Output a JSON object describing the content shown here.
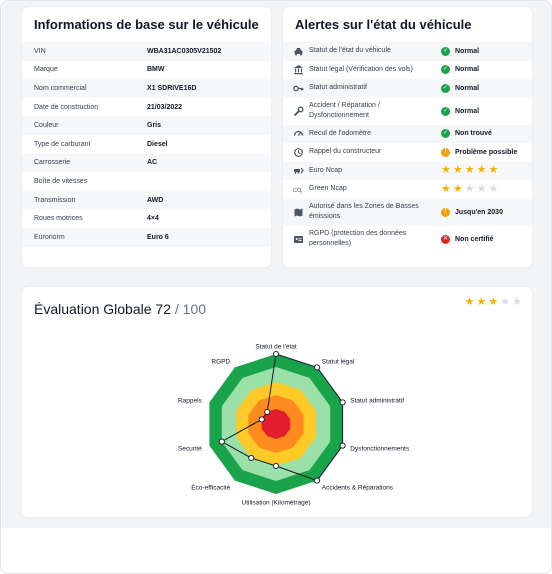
{
  "colors": {
    "normal": "#16a34a",
    "warning": "#f59e0b",
    "danger": "#dc2626",
    "star_on": "#f5b301",
    "star_off": "#d9dce1"
  },
  "vehicle_info": {
    "title": "Informations de base sur le véhicule",
    "rows": [
      {
        "label": "VIN",
        "value": "WBA31AC0305V21502"
      },
      {
        "label": "Marque",
        "value": "BMW"
      },
      {
        "label": "Nom commercial",
        "value": "X1 SDRIVE16D"
      },
      {
        "label": "Date de construction",
        "value": "21/03/2022"
      },
      {
        "label": "Couleur",
        "value": "Gris"
      },
      {
        "label": "Type de carburant",
        "value": "Diesel"
      },
      {
        "label": "Carrosserie",
        "value": "AC"
      },
      {
        "label": "Boîte de vitesses",
        "value": ""
      },
      {
        "label": "Transmission",
        "value": "AWD"
      },
      {
        "label": "Roues motrices",
        "value": "4×4"
      },
      {
        "label": "Euronorm",
        "value": "Euro 6"
      }
    ]
  },
  "alerts": {
    "title": "Alertes sur l'état du véhicule",
    "rows": [
      {
        "icon": "car-icon",
        "label": "Statut de l'état du véhicule",
        "status": "Normal",
        "level": "normal"
      },
      {
        "icon": "bank-icon",
        "label": "Statut légal (Vérification des vols)",
        "status": "Normal",
        "level": "normal"
      },
      {
        "icon": "key-icon",
        "label": "Statut administratif",
        "status": "Normal",
        "level": "normal"
      },
      {
        "icon": "wrench-icon",
        "label": "Accident / Réparation / Dysfonctionnement",
        "status": "Normal",
        "level": "normal"
      },
      {
        "icon": "odometer-icon",
        "label": "Recul de l'odomètre",
        "status": "Non trouvé",
        "level": "normal"
      },
      {
        "icon": "history-icon",
        "label": "Rappel du constructeur",
        "status": "Problème possible",
        "level": "warning"
      },
      {
        "icon": "crash-icon",
        "label": "Euro Ncap",
        "stars": 5
      },
      {
        "icon": "co2-icon",
        "label": "Green Ncap",
        "stars": 2
      },
      {
        "icon": "map-icon",
        "label": "Autorisé dans les Zones de Basses émissions",
        "status": "Jusqu'en 2030",
        "level": "warning"
      },
      {
        "icon": "id-card-icon",
        "label": "RGPD (protection des données personnelles)",
        "status": "Non certifié",
        "level": "danger"
      }
    ]
  },
  "evaluation": {
    "title": "Évaluation Globale",
    "score": "72",
    "max": "/ 100",
    "stars": 3,
    "radar_labels": [
      "Statut de l'état",
      "Statut légal",
      "Statut administratif",
      "Dysfonctionnements",
      "Accidents & Réparations",
      "Utilisation (Kilométrage)",
      "Éco-efficacité",
      "Securité",
      "Rappels",
      "RGPD"
    ],
    "radar_levels": [
      5,
      5,
      5,
      5,
      5,
      3,
      3,
      4,
      1,
      1
    ]
  }
}
